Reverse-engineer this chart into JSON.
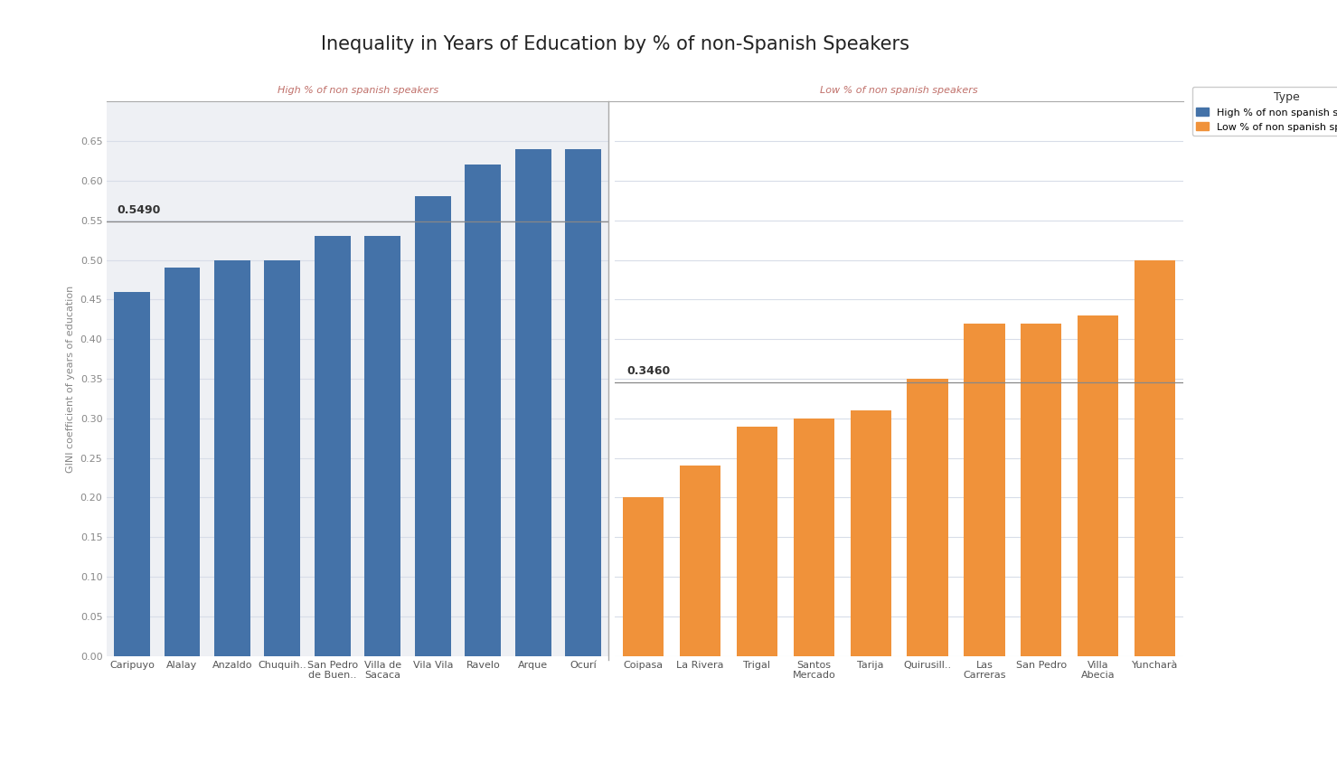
{
  "title": "Inequality in Years of Education by % of non-Spanish Speakers",
  "ylabel": "GINI coefficient of years of education",
  "high_label": "High % of non spanish speakers",
  "low_label": "Low % of non spanish speakers",
  "legend_title": "Type",
  "legend_high": "High % of non spanish speakers",
  "legend_low": "Low % of non spanish speakers",
  "high_categories": [
    "Caripuyo",
    "Alalay",
    "Anzaldo",
    "Chuquih..",
    "San Pedro\nde Buen..",
    "Villa de\nSacaca",
    "Vila Vila",
    "Ravelo",
    "Arque",
    "Ocurí"
  ],
  "low_categories": [
    "Coipasa",
    "La Rivera",
    "Trigal",
    "Santos\nMercado",
    "Tarija",
    "Quirusill..",
    "Las\nCarreras",
    "San Pedro",
    "Villa\nAbecia",
    "Yuncharà"
  ],
  "high_values": [
    0.46,
    0.49,
    0.5,
    0.5,
    0.53,
    0.53,
    0.58,
    0.62,
    0.64,
    0.64
  ],
  "low_values": [
    0.2,
    0.24,
    0.29,
    0.3,
    0.31,
    0.35,
    0.42,
    0.42,
    0.43,
    0.5
  ],
  "high_mean": 0.549,
  "low_mean": 0.346,
  "high_color": "#4472a8",
  "low_color": "#f0923a",
  "mean_line_color": "#888888",
  "high_bg": "#eef0f4",
  "low_bg": "#ffffff",
  "ylim": [
    0,
    0.7
  ],
  "yticks": [
    0.0,
    0.05,
    0.1,
    0.15,
    0.2,
    0.25,
    0.3,
    0.35,
    0.4,
    0.45,
    0.5,
    0.55,
    0.6,
    0.65
  ],
  "title_fontsize": 15,
  "axis_label_fontsize": 8,
  "tick_fontsize": 8,
  "section_label_fontsize": 8,
  "mean_label_fontsize": 9,
  "section_label_color": "#c0706a",
  "ytick_color": "#888888",
  "xtick_color": "#555555",
  "grid_color": "#d8dde8",
  "divider_color": "#aaaaaa",
  "bar_width": 0.72
}
